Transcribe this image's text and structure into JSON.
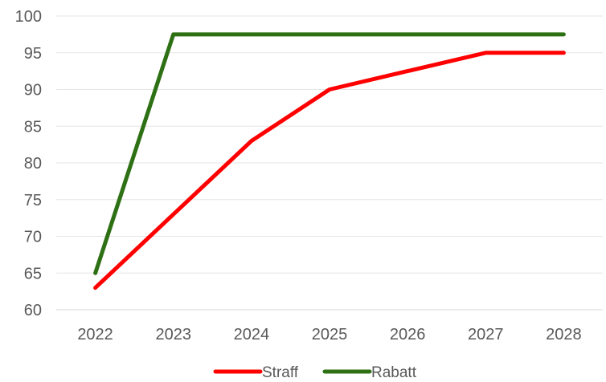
{
  "chart_data": {
    "type": "line",
    "x": [
      "2022",
      "2023",
      "2024",
      "2025",
      "2026",
      "2027",
      "2028"
    ],
    "series": [
      {
        "name": "Straff",
        "color": "#ff0000",
        "values": [
          63,
          73,
          83,
          90,
          92.5,
          95,
          95
        ]
      },
      {
        "name": "Rabatt",
        "color": "#2e7014",
        "values": [
          65,
          97.5,
          97.5,
          97.5,
          97.5,
          97.5,
          97.5
        ]
      }
    ],
    "ylim": [
      60,
      100
    ],
    "yticks": [
      "60",
      "65",
      "70",
      "75",
      "80",
      "85",
      "90",
      "95",
      "100"
    ],
    "grid": "horizontal",
    "legend": "bottom",
    "title": "",
    "xlabel": "",
    "ylabel": ""
  }
}
